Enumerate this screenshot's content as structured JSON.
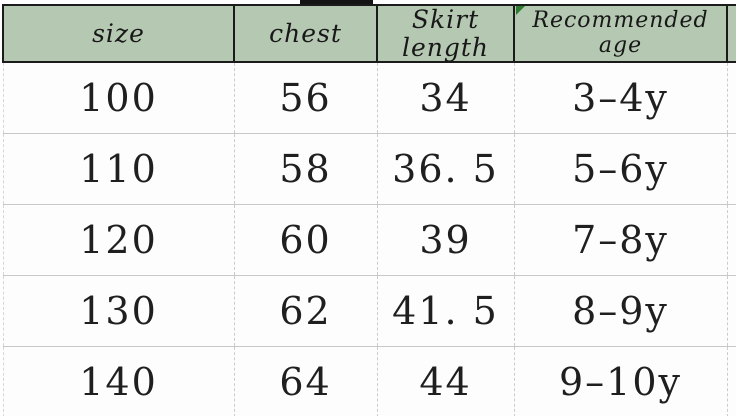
{
  "table": {
    "columns": [
      "size",
      "chest",
      "Skirt length",
      "Recommended age"
    ],
    "rows": [
      [
        "100",
        "56",
        "34",
        "3–4y"
      ],
      [
        "110",
        "58",
        "36. 5",
        "5–6y"
      ],
      [
        "120",
        "60",
        "39",
        "7–8y"
      ],
      [
        "130",
        "62",
        "41. 5",
        "8–9y"
      ],
      [
        "140",
        "64",
        "44",
        "9–10y"
      ]
    ]
  },
  "colors": {
    "header_background": "#b5c8b1",
    "header_border": "#1b1b1b",
    "body_grid": "#c8c8c8",
    "bottom_border": "#7d7d7d",
    "corner_marker_green": "#2e7b31",
    "text": "#1f1f1f"
  }
}
